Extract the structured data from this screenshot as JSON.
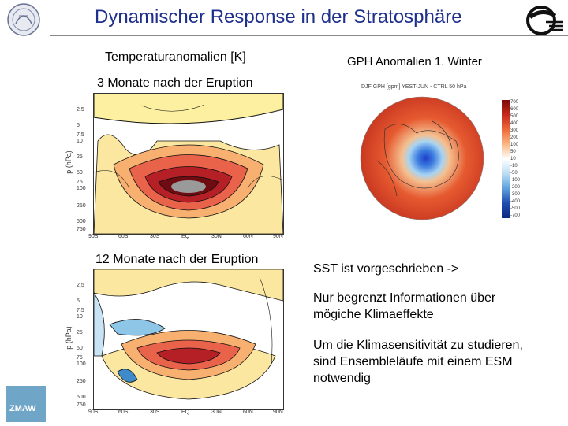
{
  "slide": {
    "title": "Dynamischer Response in der Stratosphäre",
    "labels": {
      "temp": "Temperaturanomalien [K]",
      "gph": "GPH Anomalien 1. Winter",
      "month3": "3  Monate nach der Eruption",
      "month12": "12 Monate nach der Eruption"
    },
    "bullets": [
      "SST ist vorgeschrieben ->",
      "Nur begrenzt Informationen über mögiche Klimaeffekte",
      "Um die Klimasensitivität zu studieren, sind Ensembleläufe mit einem ESM notwendig"
    ]
  },
  "plot_top": {
    "ylabel": "p (hPa)",
    "yticks": [
      "2.5",
      "5",
      "7.5",
      "10",
      "25",
      "50",
      "75",
      "100",
      "250",
      "500",
      "750"
    ],
    "xticks": [
      "90S",
      "60S",
      "30S",
      "EQ",
      "30N",
      "60N",
      "90N"
    ]
  },
  "plot_bottom": {
    "ylabel": "p (hPa)",
    "yticks": [
      "2.5",
      "5",
      "7.5",
      "10",
      "25",
      "50",
      "75",
      "100",
      "250",
      "500",
      "750"
    ],
    "xticks": [
      "90S",
      "60S",
      "30S",
      "EQ",
      "30N",
      "60N",
      "90N"
    ]
  },
  "map": {
    "caption": "DJF GPH [gpm] YEST-JUN - CTRL 50 hPa",
    "colorbar": [
      "700",
      "600",
      "500",
      "400",
      "300",
      "200",
      "100",
      "50",
      "10",
      "-10",
      "-50",
      "-100",
      "-200",
      "-300",
      "-400",
      "-500",
      "-700"
    ]
  },
  "logo_text": "ZMAW",
  "colors": {
    "title": "#1f2f8c"
  }
}
